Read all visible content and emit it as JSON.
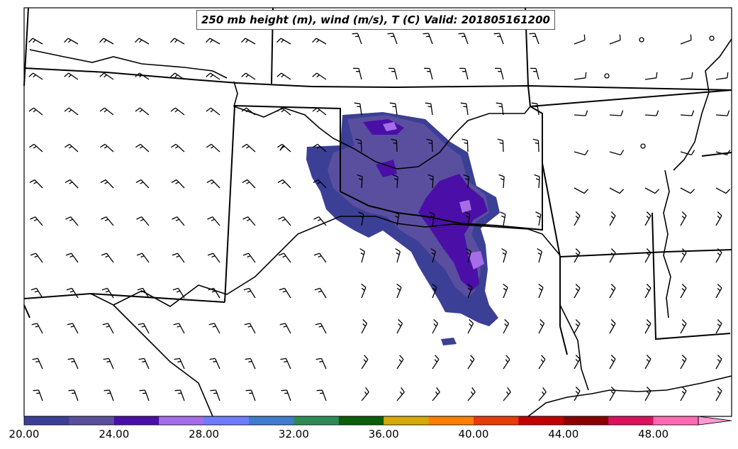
{
  "title": "250 mb height (m), wind (m/s), T (C) Valid: 201805161200",
  "colorbar": {
    "tick_labels": [
      "20.00",
      "24.00",
      "28.00",
      "32.00",
      "36.00",
      "40.00",
      "44.00",
      "48.00"
    ],
    "levels": [
      20,
      22,
      24,
      26,
      28,
      30,
      32,
      34,
      36,
      38,
      40,
      42,
      44,
      46,
      48,
      50
    ],
    "colors": [
      "#3b3f95",
      "#5a4f9f",
      "#4b0fa8",
      "#a56de8",
      "#6f7cff",
      "#3f7ccc",
      "#2e8b57",
      "#0b5e0b",
      "#d6a90b",
      "#ff7f00",
      "#e83a0b",
      "#c00000",
      "#8b0000",
      "#e0105e",
      "#ff69b4"
    ],
    "extend": "max"
  },
  "map": {
    "region": "Southern Plains, USA",
    "features": [
      "state-borders",
      "coastline",
      "wind-barbs",
      "temperature-fill"
    ]
  }
}
